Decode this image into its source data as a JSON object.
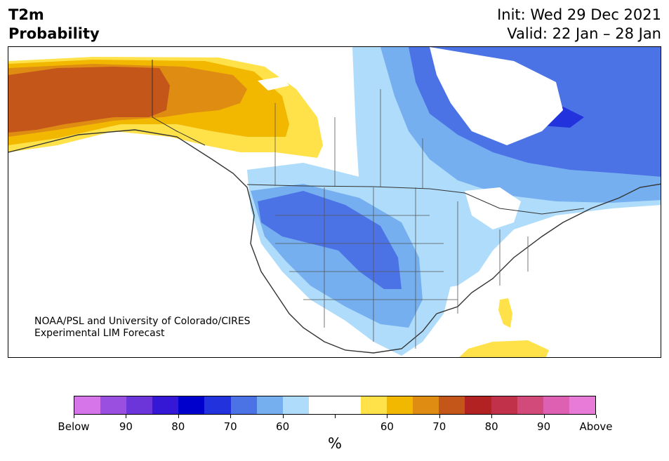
{
  "header": {
    "title_line1": "T2m",
    "title_line2": "Probability",
    "init": "Init: Wed 29 Dec 2021",
    "valid": "Valid: 22 Jan – 28 Jan"
  },
  "map": {
    "credit_line1": "NOAA/PSL and University of Colorado/CIRES",
    "credit_line2": "Experimental LIM Forecast"
  },
  "colorbar": {
    "colors": [
      "#d674ea",
      "#9b4fe0",
      "#6c35d9",
      "#3418d6",
      "#0000cc",
      "#2233dd",
      "#4c73e6",
      "#76aff0",
      "#aedcfa",
      "#ffffff",
      "#ffffff",
      "#ffe14a",
      "#f2b800",
      "#de8c12",
      "#c5561a",
      "#b22222",
      "#c1324a",
      "#d24a7a",
      "#dd60b2",
      "#e87ad8"
    ],
    "labels": [
      "Below",
      "90",
      "80",
      "70",
      "60",
      "",
      "60",
      "70",
      "80",
      "90",
      "Above"
    ],
    "unit": "%"
  },
  "palette": {
    "below_60": "#aedcfa",
    "below_70": "#76aff0",
    "below_80": "#4c73e6",
    "below_90": "#2233dd",
    "above_60": "#ffe14a",
    "above_70": "#f2b800",
    "above_80": "#de8c12",
    "above_90": "#c5561a"
  }
}
